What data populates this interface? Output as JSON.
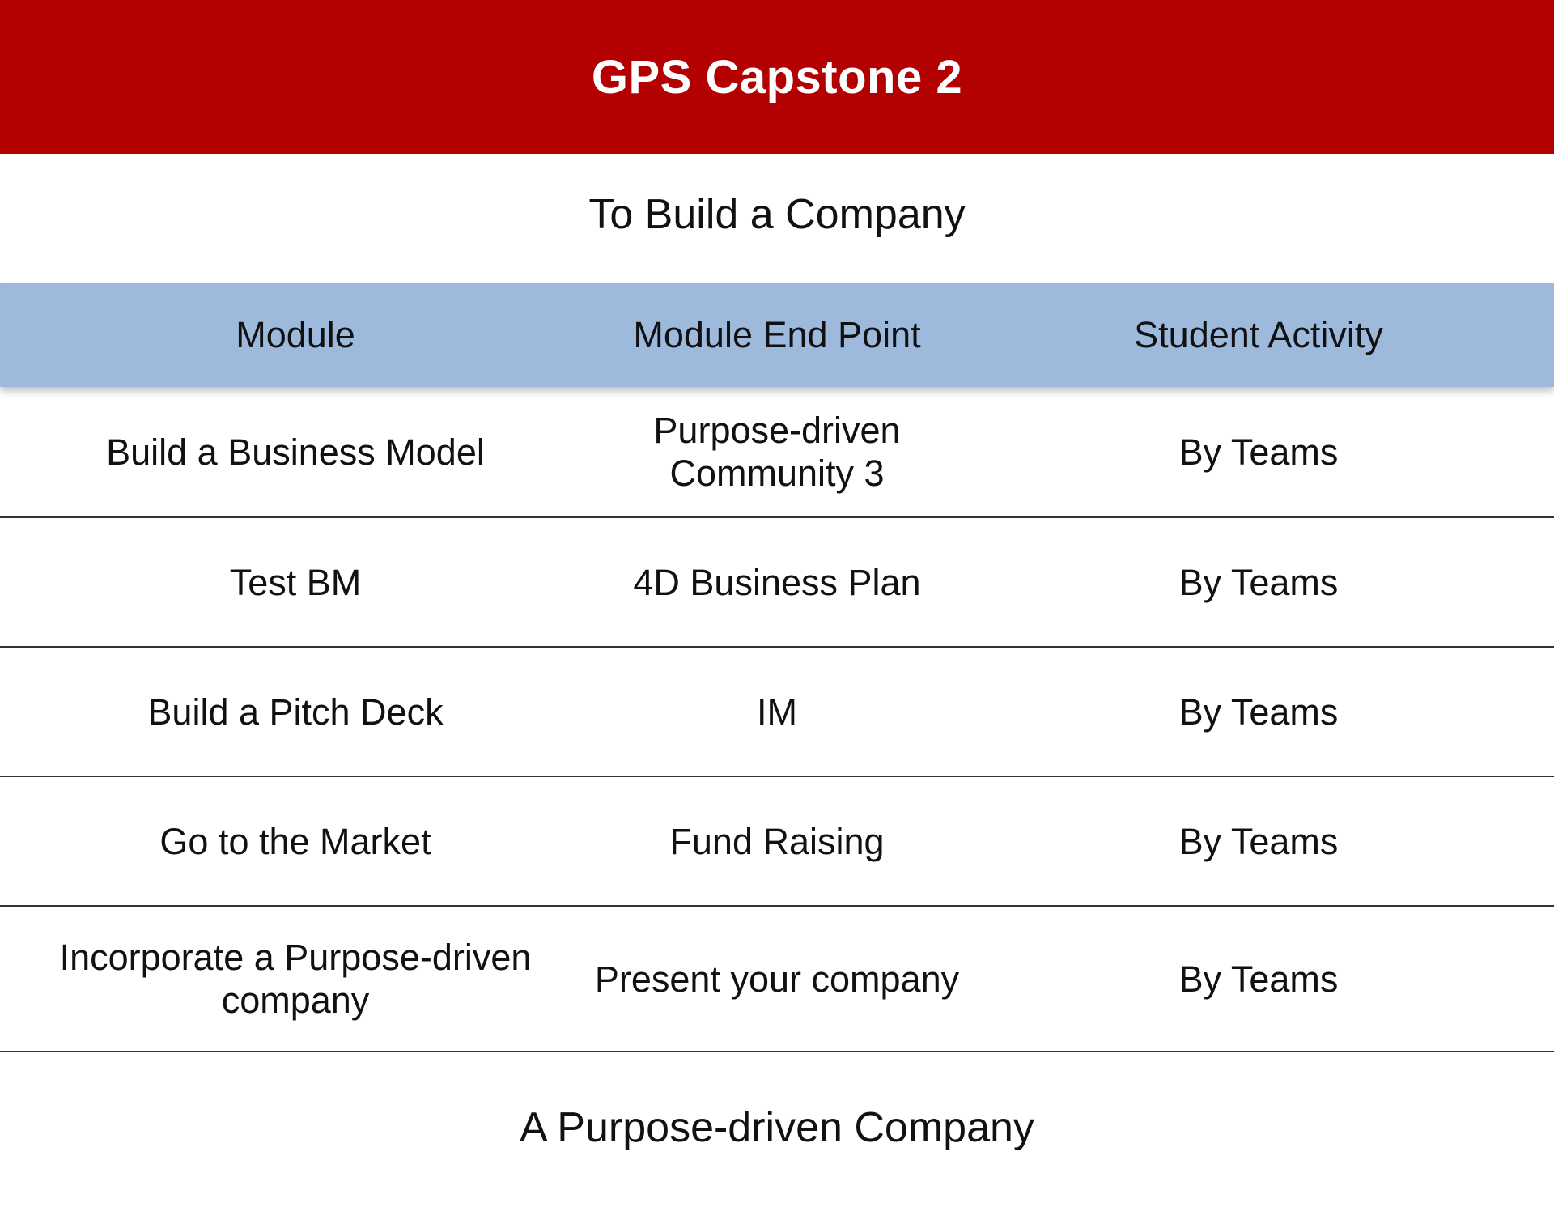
{
  "header": {
    "title": "GPS Capstone 2",
    "background_color": "#b30000"
  },
  "subtitle": "To Build a Company",
  "table": {
    "header_color": "#9dbadd",
    "columns": [
      "Module",
      "Module End Point",
      "Student Activity"
    ],
    "rows": [
      {
        "module": "Build a Business Model",
        "end_point": "Purpose-driven Community 3",
        "activity": "By Teams"
      },
      {
        "module": "Test BM",
        "end_point": "4D Business Plan",
        "activity": "By Teams"
      },
      {
        "module": "Build a Pitch Deck",
        "end_point": "IM",
        "activity": "By Teams"
      },
      {
        "module": "Go to the Market",
        "end_point": "Fund Raising",
        "activity": "By Teams"
      },
      {
        "module": "Incorporate a Purpose-driven company",
        "end_point": "Present your company",
        "activity": "By Teams"
      }
    ]
  },
  "footer": "A Purpose-driven Company"
}
